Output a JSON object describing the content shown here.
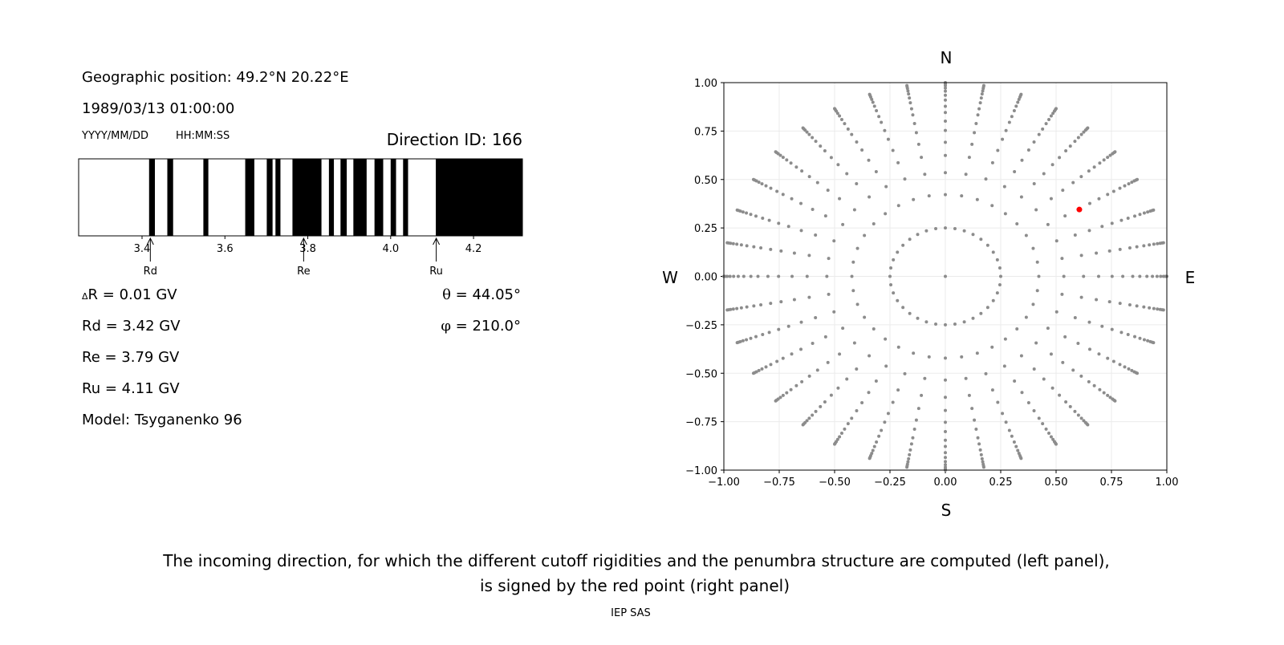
{
  "info": {
    "geo_position": "Geographic position: 49.2°N 20.22°E",
    "datetime": "1989/03/13 01:00:00",
    "date_format": "YYYY/MM/DD",
    "time_format": "HH:MM:SS",
    "direction_id": "Direction ID: 166",
    "delta_r_symbol": "Δ",
    "delta_r": "R = 0.01 GV",
    "rd": "Rd = 3.42 GV",
    "re": "Re = 3.79 GV",
    "ru": "Ru = 4.11 GV",
    "model": "Model: Tsyganenko 96",
    "theta_symbol": "θ",
    "theta": " = 44.05°",
    "phi_symbol": "φ",
    "phi": " = 210.0°"
  },
  "caption": {
    "line1": "The incoming direction, for which the different cutoff rigidities and the penumbra structure are computed (left panel),",
    "line2": "is signed by the red point (right panel)",
    "credit": "IEP SAS"
  },
  "chart_data": [
    {
      "type": "penumbra-bar",
      "xlim": [
        3.247,
        4.318
      ],
      "xticks": [
        "3.4",
        "3.6",
        "3.8",
        "4.0",
        "4.2"
      ],
      "forbidden_bands": [
        [
          3.417,
          3.431
        ],
        [
          3.461,
          3.475
        ],
        [
          3.548,
          3.56
        ],
        [
          3.649,
          3.671
        ],
        [
          3.701,
          3.715
        ],
        [
          3.722,
          3.734
        ],
        [
          3.763,
          3.833
        ],
        [
          3.851,
          3.863
        ],
        [
          3.879,
          3.894
        ],
        [
          3.91,
          3.942
        ],
        [
          3.961,
          3.982
        ],
        [
          4.0,
          4.013
        ],
        [
          4.03,
          4.042
        ],
        [
          4.109,
          4.318
        ]
      ],
      "markers": [
        {
          "label": "Rd",
          "value": 3.42
        },
        {
          "label": "Re",
          "value": 3.79
        },
        {
          "label": "Ru",
          "value": 4.11
        }
      ],
      "colors": {
        "forbidden": "#000000",
        "allowed": "#ffffff"
      }
    },
    {
      "type": "scatter",
      "xlim": [
        -1,
        1
      ],
      "ylim": [
        -1,
        1
      ],
      "xticks": [
        "−1.00",
        "−0.75",
        "−0.50",
        "−0.25",
        "0.00",
        "0.25",
        "0.50",
        "0.75",
        "1.00"
      ],
      "yticks": [
        "−1.00",
        "−0.75",
        "−0.50",
        "−0.25",
        "0.00",
        "0.25",
        "0.50",
        "0.75",
        "1.00"
      ],
      "grid": true,
      "labels": {
        "top": "N",
        "bottom": "S",
        "left": "W",
        "right": "E"
      },
      "grid_directions": {
        "azimuth_step_deg": 10,
        "radii": [
          0.25,
          0.422,
          0.535,
          0.624,
          0.692,
          0.753,
          0.801,
          0.846,
          0.878,
          0.91,
          0.935,
          0.956,
          0.972,
          0.985,
          0.994,
          1.0
        ],
        "center_point": [
          0,
          0
        ]
      },
      "highlight_point": {
        "x": 0.605,
        "y": 0.345,
        "color": "#ff0000"
      },
      "point_color": "#8c8c8c"
    }
  ]
}
